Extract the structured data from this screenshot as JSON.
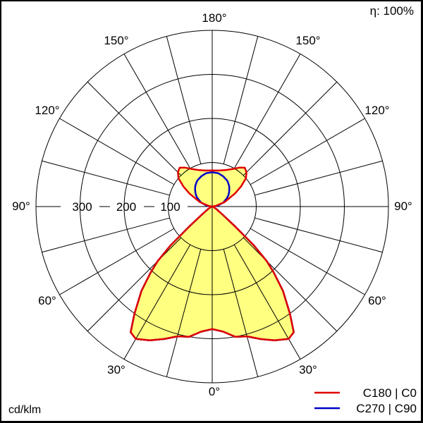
{
  "chart_data": {
    "type": "polar",
    "unit_label": "cd/klm",
    "efficiency_label": "η: 100%",
    "radial_ticks": [
      100,
      200,
      300
    ],
    "radial_tick_labels": [
      "100",
      "200",
      "300"
    ],
    "rmax": 400,
    "angle_labels": [
      "180°",
      "150°",
      "150°",
      "120°",
      "120°",
      "90°",
      "90°",
      "60°",
      "60°",
      "30°",
      "30°",
      "0°"
    ],
    "fill_color": "#ffff80",
    "gamma": [
      0,
      5,
      10,
      15,
      20,
      25,
      30,
      33,
      36,
      40,
      43,
      45,
      47,
      49,
      52,
      60,
      70,
      80,
      90,
      100,
      110,
      120,
      125,
      130,
      135,
      140,
      145,
      150,
      160,
      170,
      180
    ],
    "series": [
      {
        "name": "C180 | C0",
        "color": "#e00000",
        "values": [
          278,
          285,
          300,
          305,
          320,
          335,
          347,
          340,
          300,
          250,
          205,
          175,
          130,
          70,
          30,
          10,
          3,
          0,
          0,
          8,
          30,
          60,
          80,
          100,
          110,
          115,
          108,
          99,
          88,
          83,
          82
        ]
      },
      {
        "name": "C270 | C90",
        "color": "#0000c8",
        "values": [
          278,
          285,
          300,
          305,
          320,
          335,
          347,
          340,
          300,
          250,
          205,
          175,
          130,
          70,
          30,
          10,
          3,
          0,
          0,
          13,
          27,
          39,
          45,
          50,
          55,
          60,
          64,
          68,
          73,
          77,
          78
        ]
      }
    ]
  }
}
